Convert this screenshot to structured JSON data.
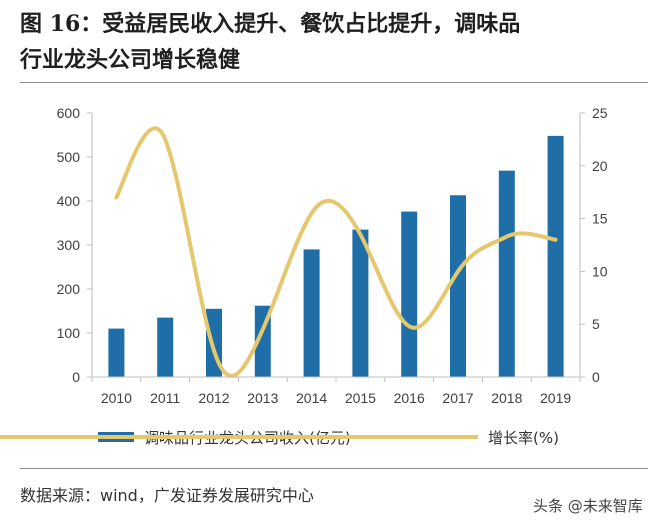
{
  "header": {
    "title_line1": "图 16：受益居民收入提升、餐饮占比提升，调味品",
    "title_line2": "行业龙头公司增长稳健"
  },
  "footer": {
    "source": "数据来源：wind，广发证券发展研究中心",
    "watermark": "头条 @未来智库"
  },
  "colors": {
    "bar": "#1f6ea8",
    "line": "#e5c86e",
    "axis": "#bfbfbf",
    "rule": "#8c8c8c"
  },
  "chart_data": {
    "type": "bar+line",
    "title": "",
    "categories": [
      "2010",
      "2011",
      "2012",
      "2013",
      "2014",
      "2015",
      "2016",
      "2017",
      "2018",
      "2019"
    ],
    "series": [
      {
        "name": "调味品行业龙头公司收入(亿元)",
        "type": "bar",
        "axis": "left",
        "values": [
          110,
          135,
          155,
          162,
          290,
          335,
          376,
          413,
          469,
          548
        ]
      },
      {
        "name": "增长率(%)",
        "type": "line",
        "axis": "right",
        "smooth": true,
        "values": [
          17,
          22.5,
          2.5,
          4.5,
          15.5,
          13.5,
          4.8,
          10,
          13.3,
          13
        ]
      }
    ],
    "y_left": {
      "min": 0,
      "max": 600,
      "ticks": [
        "0",
        "100",
        "200",
        "300",
        "400",
        "500",
        "600"
      ]
    },
    "y_right": {
      "min": 0,
      "max": 25,
      "ticks": [
        "0",
        "5",
        "10",
        "15",
        "20",
        "25"
      ]
    },
    "legend": [
      "调味品行业龙头公司收入(亿元)",
      "增长率(%)"
    ],
    "legend_position": "bottom",
    "grid": false
  }
}
